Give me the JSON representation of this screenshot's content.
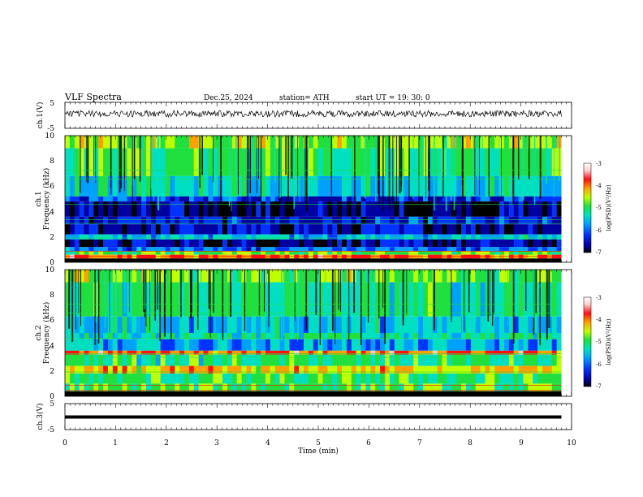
{
  "header": {
    "title": "VLF  Spectra",
    "date": "Dec.25, 2024",
    "station": "station= ATH",
    "start": "start  UT  =   19: 30: 0"
  },
  "chart_data": {
    "type": "heatmap",
    "x_axis": {
      "label": "Time  (min)",
      "range": [
        0,
        10
      ],
      "ticks": [
        "0",
        "1",
        "2",
        "3",
        "4",
        "5",
        "6",
        "7",
        "8",
        "9",
        "10"
      ]
    },
    "panels": [
      {
        "kind": "waveform",
        "ylabel": "ch.1(V)",
        "yrange": [
          -5,
          5
        ],
        "yticks": [
          "5",
          "-5"
        ],
        "level": 0,
        "color": "#000000"
      },
      {
        "kind": "spectrogram",
        "ylabel_top": "ch.1",
        "ylabel": "Frequency  (kHz)",
        "yrange": [
          0,
          10
        ],
        "yticks": [
          "0",
          "2",
          "4",
          "6",
          "8",
          "10"
        ],
        "colorbar": {
          "label": "log(PSD)(V²/Hz)",
          "range": [
            -7,
            -3
          ],
          "ticks": [
            "-3",
            "-4",
            "-5",
            "-6",
            "-7"
          ]
        },
        "bands": [
          {
            "f": [
              9.0,
              10.0
            ],
            "level": 0.62
          },
          {
            "f": [
              6.8,
              9.0
            ],
            "level": 0.54
          },
          {
            "f": [
              5.2,
              6.8
            ],
            "level": 0.42
          },
          {
            "f": [
              4.8,
              5.2
            ],
            "level": 0.24
          },
          {
            "f": [
              3.6,
              4.8
            ],
            "level": 0.12
          },
          {
            "f": [
              3.0,
              3.6
            ],
            "level": 0.2
          },
          {
            "f": [
              2.2,
              3.0
            ],
            "level": 0.16
          },
          {
            "f": [
              1.8,
              2.2
            ],
            "level": 0.4
          },
          {
            "f": [
              1.2,
              1.8
            ],
            "level": 0.14
          },
          {
            "f": [
              0.9,
              1.2
            ],
            "level": 0.3
          },
          {
            "f": [
              0.6,
              0.9
            ],
            "level": 0.58
          },
          {
            "f": [
              0.3,
              0.6
            ],
            "level": 0.8
          },
          {
            "f": [
              0.0,
              0.3
            ],
            "level": 0.0
          }
        ]
      },
      {
        "kind": "spectrogram",
        "ylabel_top": "ch.2",
        "ylabel": "Frequency  (kHz)",
        "yrange": [
          0,
          10
        ],
        "yticks": [
          "0",
          "2",
          "4",
          "6",
          "8",
          "10"
        ],
        "colorbar": {
          "label": "log(PSD)(V²/Hz)",
          "range": [
            -7,
            -3
          ],
          "ticks": [
            "-3",
            "-4",
            "-5",
            "-6",
            "-7"
          ]
        },
        "bands": [
          {
            "f": [
              9.0,
              10.0
            ],
            "level": 0.6
          },
          {
            "f": [
              6.3,
              9.0
            ],
            "level": 0.5
          },
          {
            "f": [
              5.0,
              6.3
            ],
            "level": 0.4
          },
          {
            "f": [
              4.5,
              5.0
            ],
            "level": 0.48
          },
          {
            "f": [
              3.6,
              4.5
            ],
            "level": 0.36
          },
          {
            "f": [
              3.3,
              3.6
            ],
            "level": 0.8
          },
          {
            "f": [
              2.4,
              3.3
            ],
            "level": 0.5
          },
          {
            "f": [
              1.8,
              2.4
            ],
            "level": 0.7
          },
          {
            "f": [
              1.0,
              1.8
            ],
            "level": 0.52
          },
          {
            "f": [
              0.4,
              1.0
            ],
            "level": 0.55
          },
          {
            "f": [
              0.0,
              0.4
            ],
            "level": 0.0
          }
        ]
      },
      {
        "kind": "waveform",
        "ylabel": "ch.3(V)",
        "yrange": [
          -5,
          5
        ],
        "yticks": [
          "5",
          "-5"
        ],
        "level": 0,
        "color": "#000000"
      }
    ],
    "colormap": [
      "#000000",
      "#0000a0",
      "#0033ff",
      "#00a0ff",
      "#00e0c0",
      "#20e040",
      "#c0ff00",
      "#ffa000",
      "#ff1010",
      "#ffd0d0",
      "#ffffff"
    ]
  }
}
